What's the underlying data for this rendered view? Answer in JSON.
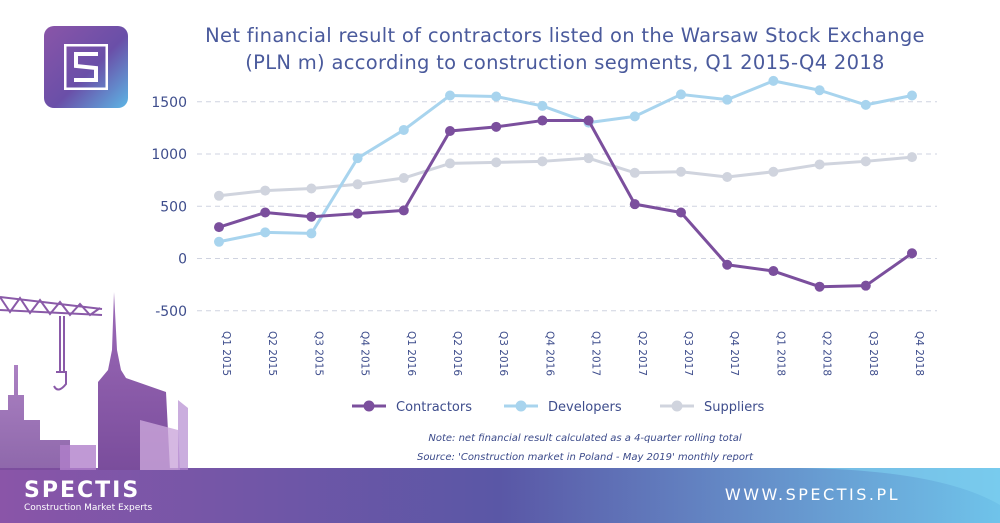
{
  "header": {
    "title_line1": "Net financial result of contractors listed on the Warsaw Stock Exchange",
    "title_line2": "(PLN m) according to construction segments, Q1 2015-Q4 2018"
  },
  "notes": {
    "line1": "Note: net financial result calculated as a 4-quarter rolling total",
    "line2": "Source: 'Construction market in Poland - May 2019' monthly report"
  },
  "brand": {
    "name": "SPECTIS",
    "tagline": "Construction Market Experts",
    "url": "WWW.SPECTIS.PL"
  },
  "chart_data": {
    "type": "line",
    "categories": [
      "Q1 2015",
      "Q2 2015",
      "Q3 2015",
      "Q4 2015",
      "Q1 2016",
      "Q2 2016",
      "Q3 2016",
      "Q4 2016",
      "Q1 2017",
      "Q2 2017",
      "Q3 2017",
      "Q4 2017",
      "Q1 2018",
      "Q2 2018",
      "Q3 2018",
      "Q4 2018"
    ],
    "ylim": [
      -500,
      1750
    ],
    "yticks": [
      -500,
      0,
      500,
      1000,
      1500
    ],
    "grid": true,
    "legend_position": "bottom",
    "series": [
      {
        "name": "Contractors",
        "color": "#7b4f9d",
        "values": [
          300,
          440,
          400,
          430,
          460,
          1220,
          1260,
          1320,
          1320,
          520,
          440,
          -60,
          -120,
          -270,
          -260,
          50
        ]
      },
      {
        "name": "Developers",
        "color": "#a8d4ee",
        "values": [
          160,
          250,
          240,
          960,
          1230,
          1560,
          1550,
          1460,
          1300,
          1360,
          1570,
          1520,
          1700,
          1610,
          1470,
          1560
        ]
      },
      {
        "name": "Suppliers",
        "color": "#d0d4de",
        "values": [
          600,
          650,
          670,
          710,
          770,
          910,
          920,
          930,
          960,
          820,
          830,
          780,
          830,
          900,
          930,
          970
        ]
      }
    ]
  }
}
